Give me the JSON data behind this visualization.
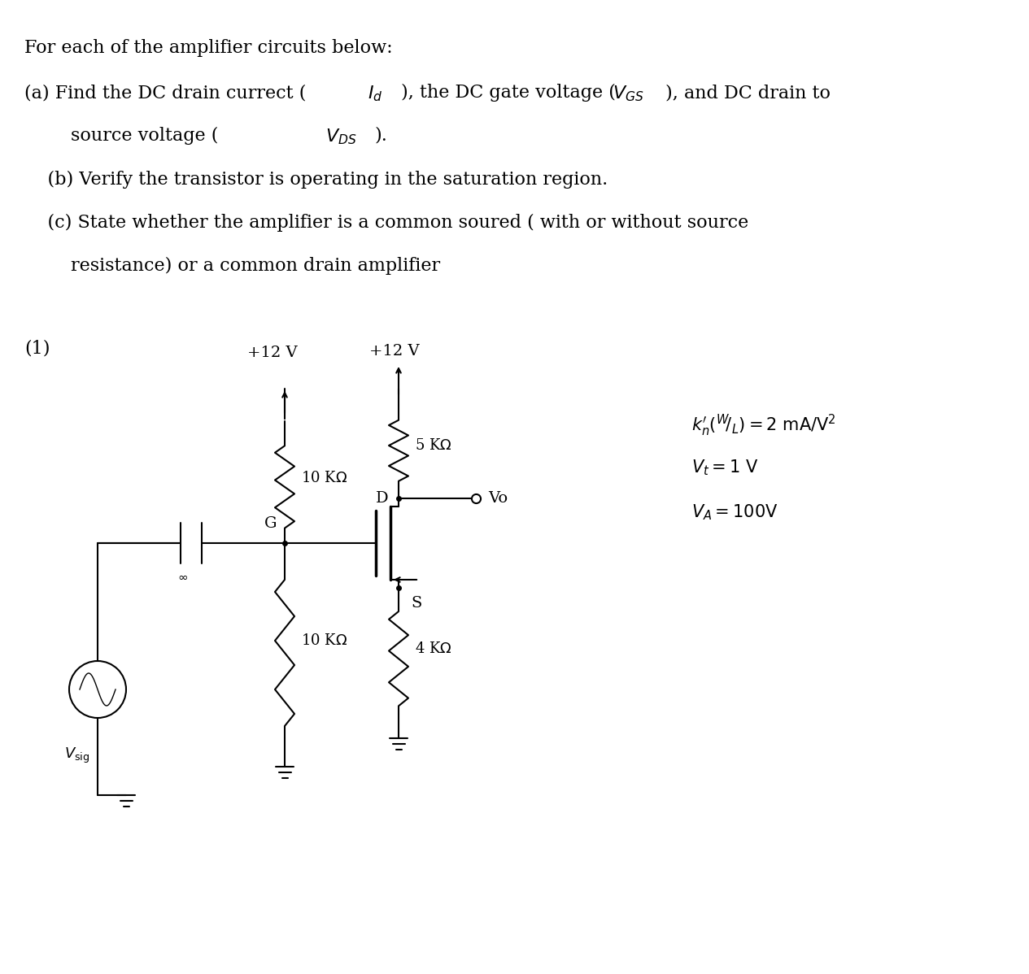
{
  "bg_color": "#ffffff",
  "text_color": "#000000",
  "title_line1": "For each of the amplifier circuits below:",
  "title_line2a": "    (a) Find the DC drain currect (",
  "title_line2b": "I",
  "title_line2c": "d",
  "title_line2d": "), the DC gate voltage (",
  "title_line2e": "V",
  "title_line2f": "GS",
  "title_line2g": "), and DC drain to",
  "title_line3": "        source voltage (",
  "title_line3b": "V",
  "title_line3c": "DS",
  "title_line3d": ").",
  "title_line4": "    (b) Verify the transistor is operating in the saturation region.",
  "title_line5a": "    (c) State whether the amplifier is a common soured ( with or without source",
  "title_line5b": "        resistance) or a common drain amplifier",
  "label_1": "(1)",
  "param1": "k",
  "param2": "n",
  "param3": "'(",
  "param4": "W",
  "param5": "/",
  "param6": "L",
  "param7": ") = 2 mA/V",
  "param8": "2",
  "param9": "V",
  "param10": "t",
  "param11": " = 1 V",
  "param12": "V",
  "param13": "A",
  "param14": " = 100V",
  "v12_1": "+12 V",
  "v12_2": "+12 V",
  "r10k_1": "10 KΩ",
  "r5k": "5 KΩ",
  "r10k_2": "10 KΩ",
  "r4k": "4 KΩ",
  "label_G": "G",
  "label_D": "D",
  "label_S": "S",
  "label_Vo": "Vo",
  "label_Vsig": "V",
  "label_sig": "sig",
  "label_inf": "∞",
  "font_size_main": 16,
  "font_size_circuit": 14,
  "font_size_label": 15
}
